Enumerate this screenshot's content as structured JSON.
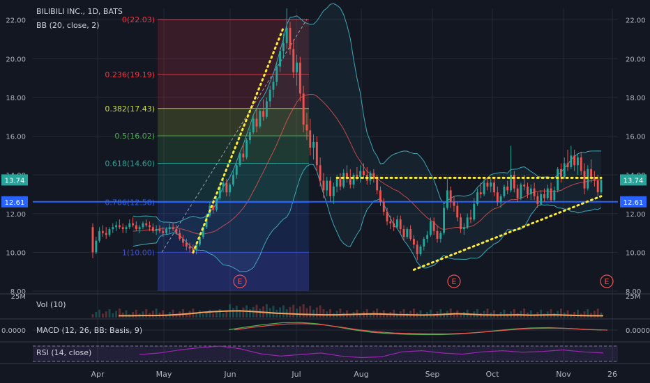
{
  "header": {
    "symbol": "BILIBILI INC., 1D, BATS",
    "indicator": "BB (20, close, 2)"
  },
  "panes": {
    "volume_label": "Vol (10)",
    "macd_label": "MACD (12, 26, BB: Basis, 9)",
    "rsi_label": "RSI (14, close)",
    "volume_scale_top": "25M",
    "macd_scale_value": "0.0000"
  },
  "price_badges": {
    "current": "13.74",
    "line": "12.61"
  },
  "colors": {
    "background": "#131722",
    "up_candle": "#26a69a",
    "down_candle": "#ef5350",
    "fib_0": "#f23645",
    "fib_0236": "#f23645",
    "fib_0382": "#cddc39",
    "fib_05": "#4caf50",
    "fib_0618": "#26a69a",
    "fib_0786": "#2962ff",
    "fib_1": "#3b4bd6",
    "bollinger_band": "#3fa7b8",
    "bollinger_basis": "#ef5350",
    "trendline": "#ffeb3b",
    "price_line": "#2962ff",
    "volume_ma": "#f7a35c",
    "macd_line": "#4caf50",
    "macd_signal": "#ef5350",
    "rsi_line": "#9c27b0",
    "earnings_marker": "#ef5350"
  },
  "chart_data": {
    "type": "candlestick",
    "title": "BILIBILI INC., 1D, BATS",
    "y_axis": {
      "ylim": [
        8.0,
        22.6
      ],
      "ticks": [
        "8.00",
        "10.00",
        "12.00",
        "14.00",
        "16.00",
        "18.00",
        "20.00",
        "22.00"
      ]
    },
    "x_axis": {
      "labels": [
        "Apr",
        "May",
        "Jun",
        "Jul",
        "Aug",
        "Sep",
        "Oct",
        "Nov",
        "26"
      ]
    },
    "candles": [
      [
        11.3,
        11.5,
        9.7,
        10.0
      ],
      [
        10.0,
        10.8,
        9.9,
        10.6
      ],
      [
        10.6,
        11.3,
        10.5,
        11.1
      ],
      [
        11.1,
        11.4,
        10.8,
        11.0
      ],
      [
        11.0,
        11.3,
        10.7,
        10.9
      ],
      [
        10.9,
        11.3,
        10.8,
        11.2
      ],
      [
        11.2,
        11.5,
        11.0,
        11.3
      ],
      [
        11.3,
        11.6,
        11.1,
        11.4
      ],
      [
        11.4,
        11.7,
        11.2,
        11.3
      ],
      [
        11.3,
        11.5,
        11.0,
        11.2
      ],
      [
        11.2,
        11.4,
        11.0,
        11.3
      ],
      [
        11.3,
        11.7,
        11.2,
        11.5
      ],
      [
        11.5,
        11.8,
        11.3,
        11.4
      ],
      [
        11.4,
        11.6,
        11.1,
        11.2
      ],
      [
        11.2,
        11.4,
        11.0,
        11.3
      ],
      [
        11.3,
        11.6,
        11.2,
        11.5
      ],
      [
        11.5,
        11.7,
        11.3,
        11.4
      ],
      [
        11.4,
        11.6,
        11.1,
        11.3
      ],
      [
        11.3,
        11.5,
        11.0,
        11.1
      ],
      [
        11.1,
        11.4,
        10.9,
        11.2
      ],
      [
        11.2,
        11.4,
        11.0,
        11.1
      ],
      [
        11.1,
        11.3,
        10.8,
        11.0
      ],
      [
        11.0,
        11.3,
        10.9,
        11.2
      ],
      [
        11.2,
        11.5,
        11.0,
        11.3
      ],
      [
        11.3,
        11.5,
        11.1,
        11.2
      ],
      [
        11.2,
        11.4,
        10.9,
        11.0
      ],
      [
        11.0,
        11.2,
        10.6,
        10.7
      ],
      [
        10.7,
        10.9,
        10.3,
        10.5
      ],
      [
        10.5,
        10.7,
        10.1,
        10.3
      ],
      [
        10.3,
        10.5,
        10.0,
        10.2
      ],
      [
        10.2,
        10.4,
        9.9,
        10.1
      ],
      [
        10.1,
        10.5,
        9.9,
        10.4
      ],
      [
        10.4,
        10.9,
        10.3,
        10.8
      ],
      [
        10.8,
        11.4,
        10.7,
        11.3
      ],
      [
        11.3,
        12.0,
        11.2,
        11.9
      ],
      [
        11.9,
        12.6,
        11.8,
        12.4
      ],
      [
        12.4,
        12.8,
        12.0,
        12.2
      ],
      [
        12.2,
        12.9,
        12.1,
        12.8
      ],
      [
        12.8,
        13.5,
        12.7,
        13.4
      ],
      [
        13.4,
        13.9,
        13.1,
        13.6
      ],
      [
        13.6,
        13.8,
        12.9,
        13.1
      ],
      [
        13.1,
        13.6,
        12.9,
        13.5
      ],
      [
        13.5,
        14.2,
        13.4,
        14.0
      ],
      [
        14.0,
        14.6,
        13.8,
        14.5
      ],
      [
        14.5,
        15.2,
        14.4,
        15.1
      ],
      [
        15.1,
        15.6,
        14.7,
        14.9
      ],
      [
        14.9,
        15.9,
        14.8,
        15.8
      ],
      [
        15.8,
        16.4,
        15.6,
        16.2
      ],
      [
        16.2,
        17.1,
        16.1,
        16.9
      ],
      [
        16.9,
        17.4,
        16.2,
        16.5
      ],
      [
        16.5,
        17.4,
        16.4,
        17.3
      ],
      [
        17.3,
        17.9,
        16.8,
        17.0
      ],
      [
        17.0,
        18.0,
        16.9,
        17.8
      ],
      [
        17.8,
        18.6,
        17.5,
        18.4
      ],
      [
        18.4,
        19.1,
        18.0,
        18.8
      ],
      [
        18.8,
        19.8,
        18.6,
        19.6
      ],
      [
        19.6,
        20.6,
        19.3,
        20.4
      ],
      [
        20.4,
        21.3,
        20.0,
        20.8
      ],
      [
        20.8,
        22.6,
        20.5,
        21.6
      ],
      [
        21.6,
        21.9,
        20.2,
        20.5
      ],
      [
        20.5,
        21.0,
        19.0,
        19.3
      ],
      [
        19.3,
        20.2,
        18.6,
        19.8
      ],
      [
        19.8,
        20.1,
        17.8,
        18.2
      ],
      [
        18.2,
        18.6,
        16.2,
        16.6
      ],
      [
        16.6,
        17.2,
        15.8,
        16.3
      ],
      [
        16.3,
        16.9,
        15.0,
        15.4
      ],
      [
        15.4,
        16.1,
        14.8,
        15.7
      ],
      [
        15.7,
        16.0,
        14.2,
        14.5
      ],
      [
        14.5,
        14.9,
        13.4,
        13.7
      ],
      [
        13.7,
        14.1,
        12.8,
        13.2
      ],
      [
        13.2,
        13.9,
        12.9,
        13.7
      ],
      [
        13.7,
        13.9,
        12.6,
        12.9
      ],
      [
        12.9,
        13.6,
        12.5,
        13.4
      ],
      [
        13.4,
        14.0,
        13.1,
        13.8
      ],
      [
        13.8,
        14.1,
        13.2,
        13.4
      ],
      [
        13.4,
        14.3,
        13.3,
        14.1
      ],
      [
        14.1,
        14.5,
        13.6,
        13.8
      ],
      [
        13.8,
        14.3,
        13.3,
        13.5
      ],
      [
        13.5,
        14.1,
        13.3,
        14.0
      ],
      [
        14.0,
        14.4,
        13.7,
        13.9
      ],
      [
        13.9,
        14.5,
        13.6,
        14.2
      ],
      [
        14.2,
        14.6,
        13.8,
        14.0
      ],
      [
        14.0,
        14.4,
        13.5,
        13.7
      ],
      [
        13.7,
        14.2,
        13.5,
        14.1
      ],
      [
        14.1,
        14.3,
        13.6,
        13.8
      ],
      [
        13.8,
        14.0,
        13.0,
        13.2
      ],
      [
        13.2,
        13.4,
        12.4,
        12.6
      ],
      [
        12.6,
        12.8,
        11.9,
        12.1
      ],
      [
        12.1,
        12.3,
        11.4,
        11.6
      ],
      [
        11.6,
        11.9,
        11.2,
        11.5
      ],
      [
        11.5,
        11.8,
        11.1,
        11.3
      ],
      [
        11.3,
        11.9,
        11.2,
        11.7
      ],
      [
        11.7,
        11.9,
        11.0,
        11.2
      ],
      [
        11.2,
        11.4,
        10.6,
        10.8
      ],
      [
        10.8,
        11.3,
        10.7,
        11.2
      ],
      [
        11.2,
        11.4,
        10.6,
        10.7
      ],
      [
        10.7,
        10.9,
        10.2,
        10.4
      ],
      [
        10.4,
        10.6,
        9.6,
        9.9
      ],
      [
        9.9,
        10.4,
        9.8,
        10.3
      ],
      [
        10.3,
        10.8,
        10.1,
        10.7
      ],
      [
        10.7,
        11.1,
        10.5,
        10.9
      ],
      [
        10.9,
        11.8,
        10.8,
        11.6
      ],
      [
        11.6,
        11.8,
        10.9,
        11.1
      ],
      [
        11.1,
        11.4,
        10.5,
        10.7
      ],
      [
        10.7,
        11.1,
        10.5,
        11.0
      ],
      [
        11.0,
        12.5,
        10.9,
        12.3
      ],
      [
        12.3,
        13.9,
        12.2,
        13.2
      ],
      [
        13.2,
        13.4,
        12.3,
        12.6
      ],
      [
        12.6,
        12.9,
        12.1,
        12.4
      ],
      [
        12.4,
        12.6,
        11.6,
        11.8
      ],
      [
        11.8,
        12.0,
        11.0,
        11.2
      ],
      [
        11.2,
        11.5,
        10.9,
        11.3
      ],
      [
        11.3,
        12.0,
        11.2,
        11.8
      ],
      [
        11.8,
        12.2,
        11.5,
        11.7
      ],
      [
        11.7,
        12.8,
        11.6,
        12.5
      ],
      [
        12.5,
        13.3,
        12.4,
        13.1
      ],
      [
        13.1,
        13.6,
        12.8,
        13.0
      ],
      [
        13.0,
        13.8,
        12.9,
        13.6
      ],
      [
        13.6,
        13.9,
        13.2,
        13.4
      ],
      [
        13.4,
        13.8,
        13.1,
        13.6
      ],
      [
        13.6,
        13.8,
        12.9,
        13.1
      ],
      [
        13.1,
        13.4,
        12.4,
        12.6
      ],
      [
        12.6,
        13.0,
        12.3,
        12.9
      ],
      [
        12.9,
        13.5,
        12.8,
        13.4
      ],
      [
        13.4,
        13.7,
        13.0,
        13.2
      ],
      [
        13.2,
        15.5,
        13.1,
        14.0
      ],
      [
        14.0,
        14.2,
        13.1,
        13.3
      ],
      [
        13.3,
        13.5,
        12.6,
        12.8
      ],
      [
        12.8,
        13.6,
        12.7,
        13.5
      ],
      [
        13.5,
        14.0,
        13.2,
        13.4
      ],
      [
        13.4,
        13.6,
        12.8,
        13.0
      ],
      [
        13.0,
        13.5,
        12.7,
        13.3
      ],
      [
        13.3,
        13.6,
        12.7,
        12.9
      ],
      [
        12.9,
        13.1,
        12.3,
        12.5
      ],
      [
        12.5,
        13.2,
        12.4,
        13.0
      ],
      [
        13.0,
        13.3,
        12.6,
        12.8
      ],
      [
        12.8,
        13.5,
        12.7,
        13.3
      ],
      [
        13.3,
        13.6,
        12.6,
        12.7
      ],
      [
        12.7,
        13.4,
        12.6,
        13.2
      ],
      [
        13.2,
        14.4,
        13.1,
        14.3
      ],
      [
        14.3,
        14.6,
        13.6,
        13.9
      ],
      [
        13.9,
        14.9,
        13.8,
        14.6
      ],
      [
        14.6,
        15.3,
        14.2,
        14.4
      ],
      [
        14.4,
        15.5,
        14.3,
        15.0
      ],
      [
        15.0,
        15.3,
        14.2,
        14.5
      ],
      [
        14.5,
        15.1,
        14.0,
        14.9
      ],
      [
        14.9,
        15.2,
        14.0,
        14.2
      ],
      [
        14.2,
        14.6,
        13.0,
        13.3
      ],
      [
        13.3,
        14.5,
        13.2,
        14.3
      ],
      [
        14.3,
        14.8,
        13.6,
        13.9
      ],
      [
        13.9,
        14.2,
        13.4,
        13.7
      ],
      [
        13.7,
        14.0,
        12.9,
        13.1
      ],
      [
        13.1,
        13.9,
        13.0,
        13.74
      ]
    ],
    "series": [
      {
        "name": "Vol (10)",
        "values": [
          1.0,
          1.0,
          1.1,
          1.1,
          1.3,
          1.7,
          2.2,
          2.9,
          3.3,
          3.6,
          3.7,
          3.4,
          2.9,
          2.4,
          2.1,
          1.8,
          1.6,
          1.5,
          1.5,
          1.7,
          1.9,
          2.0,
          1.9,
          1.6,
          1.5,
          1.4,
          1.5,
          1.8,
          2.1,
          1.8,
          1.5,
          1.4,
          1.4,
          1.5,
          1.3,
          1.4,
          1.5,
          1.3,
          1.1,
          1.0,
          1.0
        ]
      },
      {
        "name": "MACD (12, 26, BB: Basis, 9)",
        "values": [
          0.1,
          0.9,
          1.6,
          2.1,
          2.2,
          1.8,
          1.0,
          0.1,
          -0.6,
          -1.0,
          -1.2,
          -1.3,
          -1.3,
          -1.1,
          -0.7,
          -0.2,
          0.3,
          0.6,
          0.7,
          0.5,
          0.2,
          0.0
        ]
      },
      {
        "name": "RSI (14, close)",
        "values": [
          48,
          52,
          60,
          66,
          70,
          63,
          50,
          44,
          48,
          52,
          44,
          40,
          42,
          55,
          58,
          52,
          49,
          55,
          58,
          54,
          56,
          60,
          55,
          52
        ]
      }
    ],
    "fibonacci": [
      {
        "ratio": "0",
        "price": "22.03",
        "label": "0(22.03)"
      },
      {
        "ratio": "0.236",
        "price": "19.19",
        "label": "0.236(19.19)"
      },
      {
        "ratio": "0.382",
        "price": "17.43",
        "label": "0.382(17.43)"
      },
      {
        "ratio": "0.5",
        "price": "16.02",
        "label": "0.5(16.02)"
      },
      {
        "ratio": "0.618",
        "price": "14.60",
        "label": "0.618(14.60)"
      },
      {
        "ratio": "0.786",
        "price": "12.58",
        "label": "0.786(12.58)"
      },
      {
        "ratio": "1",
        "price": "10.00",
        "label": "1(10.00)"
      }
    ],
    "resistance_level": 13.85,
    "price_line_value": 12.61,
    "last_close": 13.74,
    "earnings_markers": [
      "E",
      "E",
      "E"
    ]
  }
}
